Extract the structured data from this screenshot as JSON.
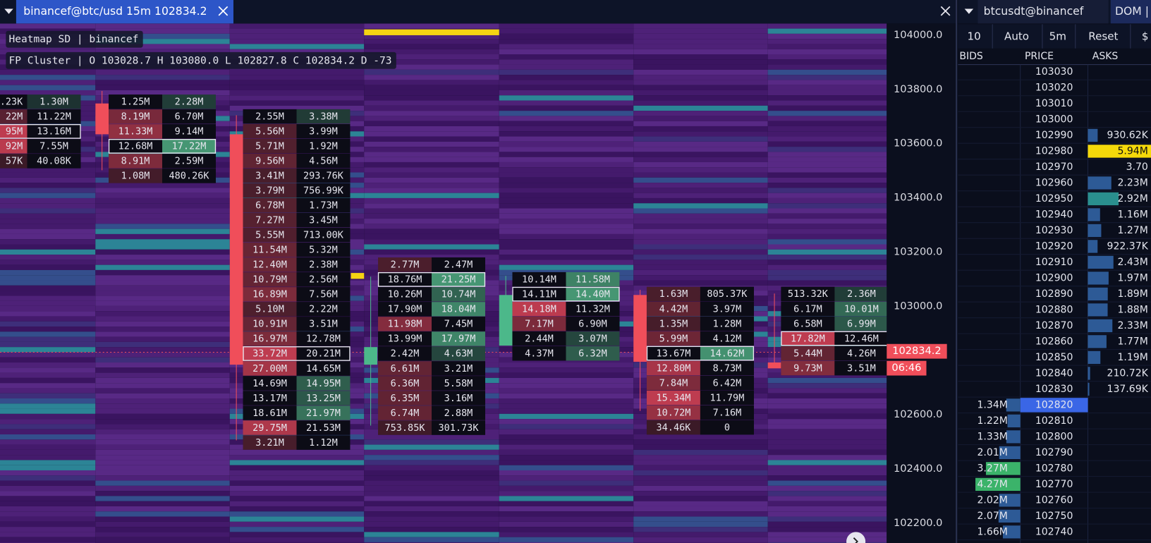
{
  "toolbar": {
    "chart_tab": "binancef@btc/usd 15m 102834.2",
    "dom_tab": "btcusdt@binancef",
    "dom_label": "DOM |"
  },
  "overlay": {
    "heatmap": "Heatmap SD | binancef",
    "cluster": "FP Cluster | O 103028.7 H 103080.0 L 102827.8 C 102834.2 D -73"
  },
  "price_axis": {
    "labels": [
      "104000.0",
      "103800.0",
      "103600.0",
      "103400.0",
      "103200.0",
      "103000.0",
      "102600.0",
      "102400.0",
      "102200.0"
    ],
    "last_price": "102834.2",
    "countdown": "06:46"
  },
  "clusters": [
    {
      "poc_row": 2,
      "rows": [
        [
          ".23K",
          "1.30M"
        ],
        [
          "22M",
          "11.22M"
        ],
        [
          "95M",
          "13.16M"
        ],
        [
          "92M",
          "7.55M"
        ],
        [
          "57K",
          "40.08K"
        ]
      ]
    },
    {
      "poc_row": 3,
      "rows": [
        [
          "1.25M",
          "2.28M"
        ],
        [
          "8.19M",
          "6.70M"
        ],
        [
          "11.33M",
          "9.14M"
        ],
        [
          "12.68M",
          "17.22M"
        ],
        [
          "8.91M",
          "2.59M"
        ],
        [
          "1.08M",
          "480.26K"
        ]
      ]
    },
    {
      "poc_row": 16,
      "rows": [
        [
          "2.55M",
          "3.38M"
        ],
        [
          "5.56M",
          "3.99M"
        ],
        [
          "5.71M",
          "1.92M"
        ],
        [
          "9.56M",
          "4.56M"
        ],
        [
          "3.41M",
          "293.76K"
        ],
        [
          "3.79M",
          "756.99K"
        ],
        [
          "6.78M",
          "1.73M"
        ],
        [
          "7.27M",
          "3.45M"
        ],
        [
          "5.55M",
          "713.00K"
        ],
        [
          "11.54M",
          "5.32M"
        ],
        [
          "12.40M",
          "2.38M"
        ],
        [
          "10.79M",
          "2.56M"
        ],
        [
          "16.89M",
          "7.56M"
        ],
        [
          "5.10M",
          "2.22M"
        ],
        [
          "10.91M",
          "3.51M"
        ],
        [
          "16.97M",
          "12.78M"
        ],
        [
          "33.72M",
          "20.21M"
        ],
        [
          "27.00M",
          "14.65M"
        ],
        [
          "14.69M",
          "14.95M"
        ],
        [
          "13.17M",
          "13.25M"
        ],
        [
          "18.61M",
          "21.97M"
        ],
        [
          "29.75M",
          "21.53M"
        ],
        [
          "3.21M",
          "1.12M"
        ]
      ]
    },
    {
      "poc_row": 1,
      "rows": [
        [
          "2.77M",
          "2.47M"
        ],
        [
          "18.76M",
          "21.25M"
        ],
        [
          "10.26M",
          "10.74M"
        ],
        [
          "17.90M",
          "18.04M"
        ],
        [
          "11.98M",
          "7.45M"
        ],
        [
          "13.99M",
          "17.97M"
        ],
        [
          "2.42M",
          "4.63M"
        ],
        [
          "6.61M",
          "3.21M"
        ],
        [
          "6.36M",
          "5.58M"
        ],
        [
          "6.35M",
          "3.16M"
        ],
        [
          "6.74M",
          "2.88M"
        ],
        [
          "753.85K",
          "301.73K"
        ]
      ]
    },
    {
      "poc_row": 1,
      "rows": [
        [
          "10.14M",
          "11.58M"
        ],
        [
          "14.11M",
          "14.40M"
        ],
        [
          "14.18M",
          "11.32M"
        ],
        [
          "7.17M",
          "6.90M"
        ],
        [
          "2.44M",
          "3.07M"
        ],
        [
          "4.37M",
          "6.32M"
        ]
      ]
    },
    {
      "poc_row": 4,
      "rows": [
        [
          "1.63M",
          "805.37K"
        ],
        [
          "4.42M",
          "3.97M"
        ],
        [
          "1.35M",
          "1.28M"
        ],
        [
          "5.99M",
          "4.12M"
        ],
        [
          "13.67M",
          "14.62M"
        ],
        [
          "12.80M",
          "8.73M"
        ],
        [
          "7.84M",
          "6.42M"
        ],
        [
          "15.34M",
          "11.79M"
        ],
        [
          "10.72M",
          "7.16M"
        ],
        [
          "34.46K",
          "0"
        ]
      ]
    },
    {
      "poc_row": 3,
      "rows": [
        [
          "513.32K",
          "2.36M"
        ],
        [
          "6.17M",
          "10.01M"
        ],
        [
          "6.58M",
          "6.99M"
        ],
        [
          "17.82M",
          "12.46M"
        ],
        [
          "5.44M",
          "4.26M"
        ],
        [
          "9.73M",
          "3.51M"
        ]
      ]
    }
  ],
  "dom": {
    "controls": [
      "10",
      "Auto",
      "5m",
      "Reset",
      "$"
    ],
    "headers": [
      "BIDS",
      "PRICE",
      "ASKS"
    ],
    "rows": [
      {
        "price": "103030"
      },
      {
        "price": "103020"
      },
      {
        "price": "103010"
      },
      {
        "price": "103000"
      },
      {
        "price": "102990",
        "ask": "930.62K"
      },
      {
        "price": "102980",
        "ask": "5.94M"
      },
      {
        "price": "102970",
        "ask": "3.70"
      },
      {
        "price": "102960",
        "ask": "2.23M"
      },
      {
        "price": "102950",
        "ask": "2.92M"
      },
      {
        "price": "102940",
        "ask": "1.16M"
      },
      {
        "price": "102930",
        "ask": "1.27M"
      },
      {
        "price": "102920",
        "ask": "922.37K"
      },
      {
        "price": "102910",
        "ask": "2.43M"
      },
      {
        "price": "102900",
        "ask": "1.97M"
      },
      {
        "price": "102890",
        "ask": "1.89M"
      },
      {
        "price": "102880",
        "ask": "1.88M"
      },
      {
        "price": "102870",
        "ask": "2.33M"
      },
      {
        "price": "102860",
        "ask": "1.77M"
      },
      {
        "price": "102850",
        "ask": "1.19M"
      },
      {
        "price": "102840",
        "ask": "210.72K"
      },
      {
        "price": "102830",
        "ask": "137.69K"
      },
      {
        "price": "102820",
        "bid": "1.34M"
      },
      {
        "price": "102810",
        "bid": "1.22M"
      },
      {
        "price": "102800",
        "bid": "1.33M"
      },
      {
        "price": "102790",
        "bid": "2.01M"
      },
      {
        "price": "102780",
        "bid": "3.27M"
      },
      {
        "price": "102770",
        "bid": "4.27M"
      },
      {
        "price": "102760",
        "bid": "2.02M"
      },
      {
        "price": "102750",
        "bid": "2.07M"
      },
      {
        "price": "102740",
        "bid": "1.66M"
      }
    ]
  }
}
